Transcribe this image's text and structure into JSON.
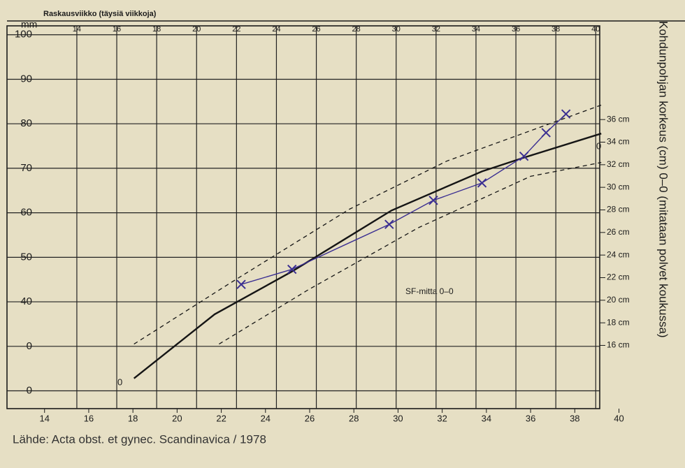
{
  "chart_data": {
    "type": "line",
    "title": "Raskausviikko (täysiä viikkoja)",
    "y_axis_label": "mm",
    "y2_axis_label": "Kohdunpohjan korkeus (cm) 0–0 (mitataan polvet koukussa)",
    "annotations": [
      "SF-mitta 0–0",
      "0",
      "0"
    ],
    "source": "Lähde: Acta obst. et gynec. Scandinavica / 1978",
    "xlim": [
      12.3,
      40.3
    ],
    "xticks": [
      14,
      16,
      18,
      20,
      22,
      24,
      26,
      28,
      30,
      32,
      34,
      36,
      38,
      40
    ],
    "x2lim": [
      10.5,
      40.2
    ],
    "x2ticks": [
      14,
      16,
      18,
      20,
      22,
      24,
      26,
      28,
      30,
      32,
      34,
      36,
      38,
      40
    ],
    "ylim": [
      16,
      102
    ],
    "yticks": [
      100,
      90,
      80,
      70,
      60,
      50,
      40,
      {
        "value": 30,
        "label": "0"
      },
      {
        "value": 20,
        "label": "0"
      }
    ],
    "y2lim": [
      10.4,
      44.3
    ],
    "y2ticks": [
      {
        "value": 16,
        "label": "16 cm"
      },
      {
        "value": 18,
        "label": "18 cm"
      },
      {
        "value": 20,
        "label": "20 cm"
      },
      {
        "value": 22,
        "label": "22 cm"
      },
      {
        "value": 24,
        "label": "24 cm"
      },
      {
        "value": 26,
        "label": "26 cm"
      },
      {
        "value": 28,
        "label": "28 cm"
      },
      {
        "value": 30,
        "label": "30 cm"
      },
      {
        "value": 32,
        "label": "32 cm"
      },
      {
        "value": 34,
        "label": "34 cm"
      },
      {
        "value": 36,
        "label": "36 cm"
      }
    ],
    "grid": true,
    "series": [
      {
        "color": "#151515",
        "style": "solid",
        "x": [
          18.05,
          21.7,
          25.2,
          29.7,
          33.8,
          35.7,
          39.2
        ],
        "values": [
          22.8,
          37.2,
          46.8,
          60.5,
          69.3,
          72.4,
          77.8
        ]
      },
      {
        "color": "#151515",
        "style": "dashed",
        "x": [
          18.05,
          22.4,
          27.8,
          32.2,
          39.2
        ],
        "values": [
          30.5,
          44.2,
          60.8,
          71.6,
          84.2
        ]
      },
      {
        "color": "#151515",
        "style": "dashed",
        "x": [
          21.9,
          25.9,
          30.9,
          36.0,
          39.2
        ],
        "values": [
          30.5,
          42.6,
          56.6,
          68.2,
          71.3
        ]
      },
      {
        "color": "#3b2f92",
        "style": "hand",
        "x": [
          22.9,
          25.2,
          29.6,
          31.6,
          33.8,
          35.7,
          36.7,
          37.6
        ],
        "values": [
          43.9,
          47.3,
          57.4,
          62.8,
          66.7,
          72.7,
          78.0,
          82.2
        ]
      }
    ]
  }
}
